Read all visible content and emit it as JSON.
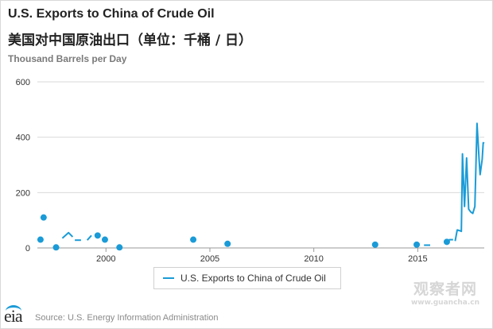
{
  "header": {
    "title_en": "U.S. Exports to China of Crude Oil",
    "title_zh": "美国对中国原油出口（单位：千桶 / 日）",
    "units": "Thousand Barrels per Day"
  },
  "footer": {
    "source": "Source: U.S. Energy Information Administration",
    "logo_text": "eia"
  },
  "watermark": {
    "big": "观察者网",
    "small": "www.guancha.cn"
  },
  "colors": {
    "series": "#1a9bd7",
    "grid": "#d9d9d9",
    "axis": "#999999"
  },
  "chart_data": {
    "type": "line",
    "title": "U.S. Exports to China of Crude Oil",
    "ylabel": "Thousand Barrels per Day",
    "xlim": [
      1996.7,
      2018.2
    ],
    "ylim": [
      0,
      600
    ],
    "x_ticks": [
      2000,
      2005,
      2010,
      2015
    ],
    "y_ticks": [
      0,
      200,
      400,
      600
    ],
    "grid": "horizontal",
    "legend": "bottom-center",
    "series": [
      {
        "name": "U.S. Exports to China of Crude Oil",
        "segments": [
          [
            [
              1997.9,
              35
            ],
            [
              1998.2,
              55
            ],
            [
              1998.4,
              40
            ]
          ],
          [
            [
              1998.5,
              28
            ],
            [
              1998.8,
              28
            ]
          ],
          [
            [
              1999.1,
              28
            ],
            [
              1999.3,
              45
            ]
          ],
          [
            [
              2015.3,
              10
            ],
            [
              2015.6,
              10
            ]
          ],
          [
            [
              2016.5,
              30
            ],
            [
              2016.7,
              30
            ]
          ],
          [
            [
              2016.8,
              25
            ],
            [
              2016.9,
              65
            ],
            [
              2017.0,
              63
            ],
            [
              2017.1,
              60
            ],
            [
              2017.15,
              340
            ],
            [
              2017.25,
              150
            ],
            [
              2017.35,
              325
            ],
            [
              2017.45,
              140
            ],
            [
              2017.55,
              130
            ],
            [
              2017.65,
              125
            ],
            [
              2017.75,
              150
            ],
            [
              2017.85,
              450
            ],
            [
              2017.95,
              320
            ],
            [
              2018.0,
              265
            ],
            [
              2018.1,
              320
            ],
            [
              2018.15,
              380
            ],
            [
              2018.2,
              378
            ]
          ]
        ],
        "points": [
          [
            1996.85,
            30
          ],
          [
            1997.0,
            110
          ],
          [
            1997.6,
            2
          ],
          [
            1999.6,
            45
          ],
          [
            1999.95,
            30
          ],
          [
            2000.65,
            2
          ],
          [
            2004.2,
            30
          ],
          [
            2005.85,
            15
          ],
          [
            2012.95,
            12
          ],
          [
            2014.95,
            12
          ],
          [
            2016.4,
            22
          ]
        ]
      }
    ]
  }
}
